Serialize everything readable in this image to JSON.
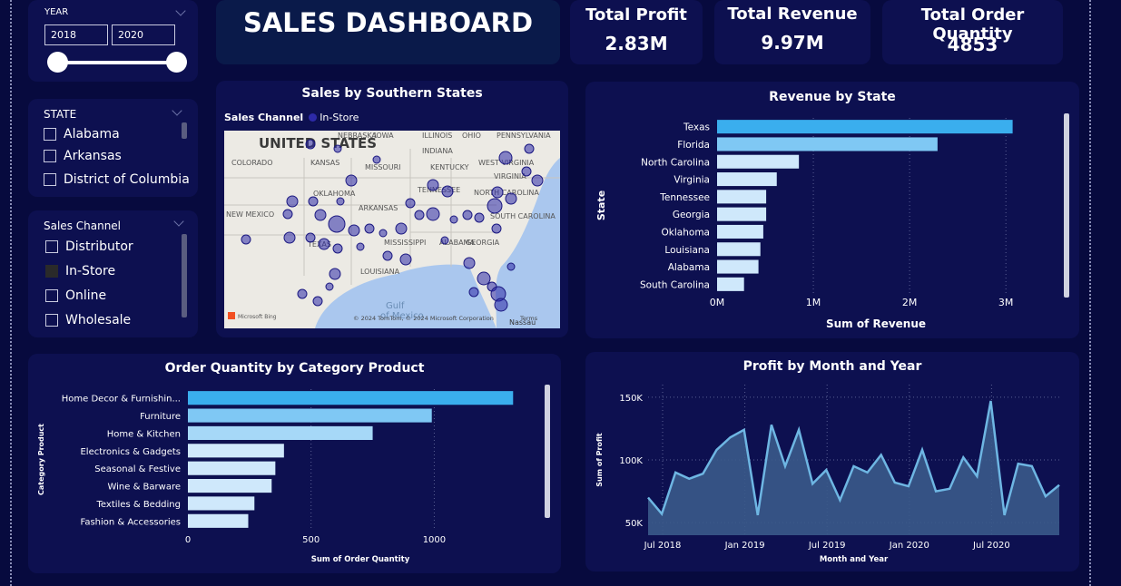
{
  "title": "SALES DASHBOARD",
  "year_slicer": {
    "header": "YEAR",
    "from": "2018",
    "to": "2020"
  },
  "state_slicer": {
    "header": "STATE",
    "items": [
      "Alabama",
      "Arkansas",
      "District of Columbia"
    ]
  },
  "channel_slicer": {
    "header": "Sales Channel",
    "items": [
      {
        "label": "Distributor",
        "checked": false
      },
      {
        "label": "In-Store",
        "checked": true
      },
      {
        "label": "Online",
        "checked": false
      },
      {
        "label": "Wholesale",
        "checked": false
      }
    ]
  },
  "kpis": {
    "profit": {
      "label": "Total Profit",
      "value": "2.83M"
    },
    "revenue": {
      "label": "Total Revenue",
      "value": "9.97M"
    },
    "quantity": {
      "label": "Total Order Quantity",
      "value": "4853"
    }
  },
  "map": {
    "title": "Sales by Southern States",
    "legend_label": "Sales Channel",
    "legend_item": "In-Store",
    "map_labels": {
      "country": "UNITED STATES",
      "states": [
        "NEBRASKA",
        "IOWA",
        "ILLINOIS",
        "OHIO",
        "PENNSYLVANIA",
        "COLORADO",
        "KANSAS",
        "MISSOURI",
        "INDIANA",
        "KENTUCKY",
        "WEST VIRGINIA",
        "VIRGINIA",
        "NEW MEXICO",
        "OKLAHOMA",
        "ARKANSAS",
        "TENNESSEE",
        "NORTH CAROLINA",
        "SOUTH CAROLINA",
        "TEXAS",
        "MISSISSIPPI",
        "ALABAMA",
        "GEORGIA",
        "LOUISIANA"
      ],
      "gulf": [
        "Gulf",
        "of Mexico"
      ],
      "city": "Nassau"
    },
    "attribution": "© 2024 TomTom, © 2024 Microsoft Corporation",
    "terms": "Terms",
    "bing": "Microsoft Bing",
    "color": "#2d2aa8"
  },
  "chart_data": [
    {
      "type": "bar",
      "title": "Revenue by State",
      "xlabel": "Sum of Revenue",
      "ylabel": "State",
      "categories": [
        "Texas",
        "Florida",
        "North Carolina",
        "Virginia",
        "Tennessee",
        "Georgia",
        "Oklahoma",
        "Louisiana",
        "Alabama",
        "South Carolina"
      ],
      "values": [
        3.07,
        2.29,
        0.85,
        0.62,
        0.51,
        0.51,
        0.48,
        0.45,
        0.43,
        0.28
      ],
      "xticks": [
        "0M",
        "1M",
        "2M",
        "3M"
      ],
      "xlim": [
        0,
        3.3
      ],
      "colors": [
        "#3aaeee",
        "#7fc8f4",
        "#cfe8fb",
        "#cfe8fb",
        "#cfe8fb",
        "#cfe8fb",
        "#cfe8fb",
        "#cfe8fb",
        "#cfe8fb",
        "#cfe8fb"
      ]
    },
    {
      "type": "bar",
      "title": "Order Quantity by Category Product",
      "xlabel": "Sum of Order Quantity",
      "ylabel": "Category Product",
      "categories": [
        "Home Decor & Furnishin...",
        "Furniture",
        "Home & Kitchen",
        "Electronics & Gadgets",
        "Seasonal & Festive",
        "Wine & Barware",
        "Textiles & Bedding",
        "Fashion & Accessories"
      ],
      "values": [
        1320,
        990,
        750,
        390,
        355,
        340,
        270,
        245
      ],
      "xticks": [
        "0",
        "500",
        "1000"
      ],
      "xlim": [
        0,
        1400
      ],
      "colors": [
        "#3aaeee",
        "#7fc8f4",
        "#a6d8f7",
        "#cfe8fb",
        "#cfe8fb",
        "#cfe8fb",
        "#cfe8fb",
        "#cfe8fb"
      ]
    },
    {
      "type": "area",
      "title": "Profit by Month and Year",
      "xlabel": "Month and Year",
      "ylabel": "Sum of Profit",
      "xticks": [
        "Jul 2018",
        "Jan 2019",
        "Jul 2019",
        "Jan 2020",
        "Jul 2020"
      ],
      "yticks": [
        "50K",
        "100K",
        "150K"
      ],
      "ylim": [
        40,
        160
      ],
      "values": [
        70,
        57,
        90,
        85,
        89,
        108,
        118,
        124,
        56,
        128,
        95,
        124,
        81,
        92,
        68,
        95,
        90,
        104,
        82,
        79,
        108,
        75,
        77,
        102,
        87,
        147,
        56,
        97,
        95,
        71,
        80
      ],
      "line_color": "#6eb6e3",
      "fill_color": "#3a5a8a"
    }
  ]
}
